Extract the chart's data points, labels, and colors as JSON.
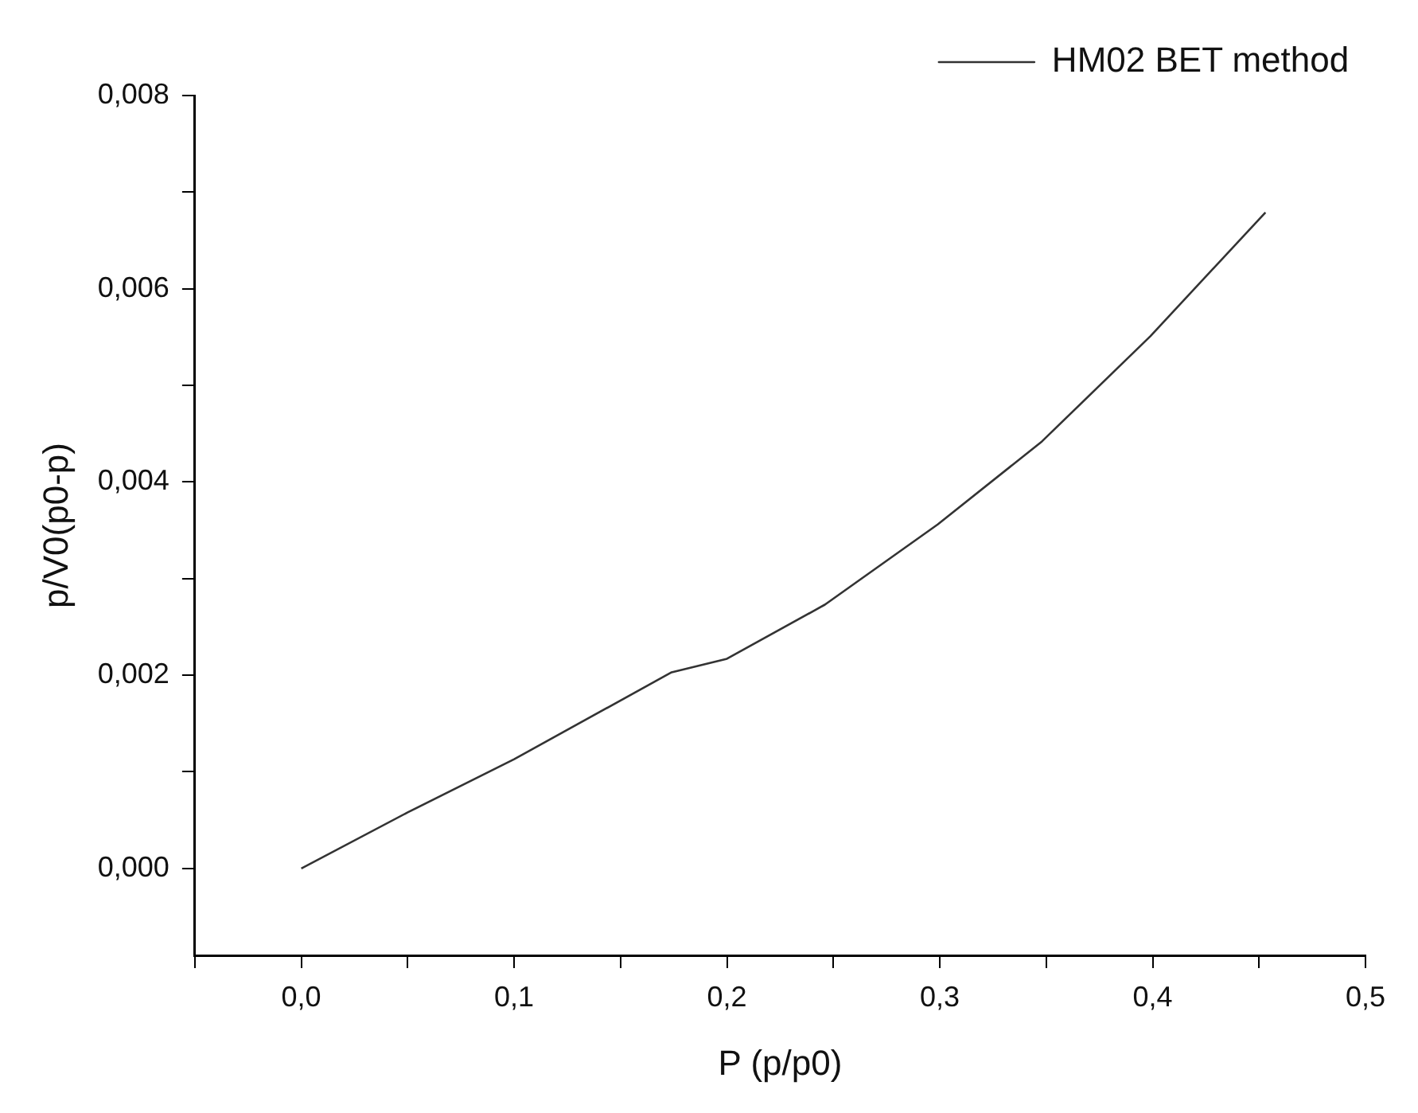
{
  "chart_data": {
    "type": "line",
    "xlabel": "P (p/p0)",
    "ylabel": "p/V0(p0-p)",
    "x": [
      0,
      0.05,
      0.1,
      0.174,
      0.2,
      0.246,
      0.299,
      0.348,
      0.399,
      0.453
    ],
    "series": [
      {
        "name": "HM02 BET method",
        "color": "#333333",
        "values": [
          0,
          0.00058,
          0.00113,
          0.00203,
          0.00217,
          0.00273,
          0.00356,
          0.00442,
          0.00551,
          0.00679
        ]
      }
    ],
    "xlim": [
      -0.05,
      0.5
    ],
    "xticks": [
      {
        "value": -0.05,
        "label": null
      },
      {
        "value": 0,
        "label": "0,0"
      },
      {
        "value": 0.05,
        "label": null
      },
      {
        "value": 0.1,
        "label": "0,1"
      },
      {
        "value": 0.15,
        "label": null
      },
      {
        "value": 0.2,
        "label": "0,2"
      },
      {
        "value": 0.25,
        "label": null
      },
      {
        "value": 0.3,
        "label": "0,3"
      },
      {
        "value": 0.35,
        "label": null
      },
      {
        "value": 0.4,
        "label": "0,4"
      },
      {
        "value": 0.45,
        "label": null
      },
      {
        "value": 0.5,
        "label": "0,5"
      }
    ],
    "ylim": [
      -0.0009,
      0.008
    ],
    "yticks": [
      {
        "value": 0,
        "label": "0,000"
      },
      {
        "value": 0.001,
        "label": null
      },
      {
        "value": 0.002,
        "label": "0,002"
      },
      {
        "value": 0.003,
        "label": null
      },
      {
        "value": 0.004,
        "label": "0,004"
      },
      {
        "value": 0.005,
        "label": null
      },
      {
        "value": 0.006,
        "label": "0,006"
      },
      {
        "value": 0.007,
        "label": null
      },
      {
        "value": 0.008,
        "label": "0,008"
      }
    ],
    "grid": false,
    "legend": "top right",
    "marker": "none",
    "line_style": "solid"
  }
}
